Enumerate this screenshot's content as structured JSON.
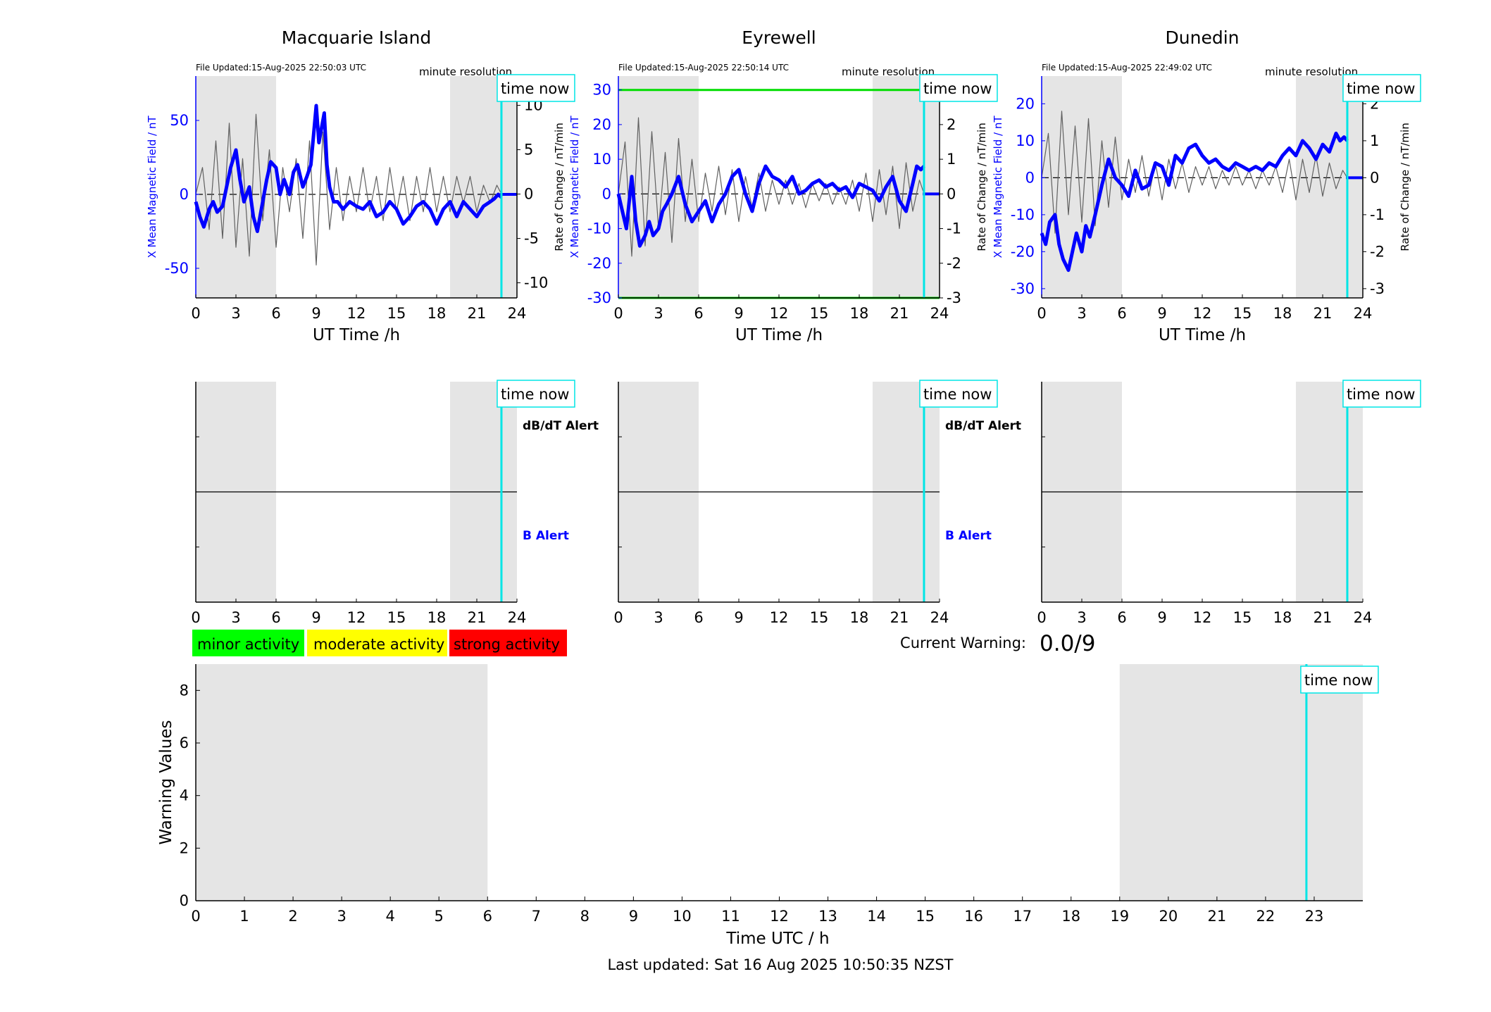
{
  "figure": {
    "last_updated": "Last updated: Sat 16 Aug 2025 10:50:35 NZST",
    "time_now_label": "time now",
    "minute_resolution_label": "minute resolution",
    "current_warning_label": "Current Warning:",
    "current_warning_value": "0.0/9",
    "legend": [
      {
        "label": "minor activity",
        "color": "#00ff00"
      },
      {
        "label": "moderate activity",
        "color": "#ffff00"
      },
      {
        "label": "strong activity",
        "color": "#ff0000"
      }
    ],
    "alert_labels": {
      "dbdt": "dB/dT Alert",
      "b": "B Alert"
    },
    "colors": {
      "series_x": "#0000ff",
      "rate": "#606060",
      "time_now": "#00e5e5",
      "shade": "#e5e5e5",
      "threshold": "#00dd00"
    }
  },
  "chart_data": [
    {
      "type": "line",
      "title": "Macquarie Island",
      "file_updated": "File Updated:15-Aug-2025 22:50:03 UTC",
      "xlabel": "UT Time /h",
      "ylabel_left": "X Mean Magnetic Field / nT",
      "ylabel_right": "Rate of Change / nT/min",
      "xlim": [
        0,
        24
      ],
      "xticks": [
        0,
        3,
        6,
        9,
        12,
        15,
        18,
        21,
        24
      ],
      "ylim_left": [
        -70,
        80
      ],
      "yticks_left": [
        -50,
        0,
        50
      ],
      "ylim_right": [
        -11.7,
        13.3
      ],
      "yticks_right": [
        -10,
        -5,
        0,
        5,
        10
      ],
      "shaded_ranges": [
        [
          0,
          6
        ],
        [
          19,
          24
        ]
      ],
      "time_now": 22.84,
      "threshold_lines": [],
      "series": [
        {
          "axis": "left",
          "x": [
            0,
            0.3,
            0.6,
            1,
            1.3,
            1.6,
            2,
            2.3,
            2.6,
            3,
            3.3,
            3.6,
            4,
            4.3,
            4.6,
            5,
            5.3,
            5.6,
            6,
            6.3,
            6.6,
            7,
            7.3,
            7.6,
            8,
            8.3,
            8.6,
            8.8,
            9,
            9.2,
            9.4,
            9.6,
            9.8,
            10,
            10.3,
            10.6,
            11,
            11.5,
            12,
            12.5,
            13,
            13.5,
            14,
            14.5,
            15,
            15.5,
            16,
            16.5,
            17,
            17.5,
            18,
            18.5,
            19,
            19.5,
            20,
            20.5,
            21,
            21.5,
            22,
            22.3,
            22.6,
            22.84
          ],
          "y": [
            -5,
            -15,
            -22,
            -10,
            -5,
            -12,
            -8,
            5,
            18,
            30,
            10,
            -5,
            5,
            -15,
            -25,
            -5,
            10,
            22,
            18,
            0,
            10,
            0,
            15,
            20,
            5,
            12,
            20,
            40,
            60,
            35,
            45,
            55,
            20,
            5,
            -5,
            -5,
            -10,
            -5,
            -8,
            -10,
            -5,
            -15,
            -12,
            -5,
            -10,
            -20,
            -15,
            -8,
            -5,
            -10,
            -20,
            -10,
            -5,
            -15,
            -5,
            -10,
            -15,
            -8,
            -5,
            -3,
            0,
            -2
          ]
        },
        {
          "axis": "right",
          "x": [
            0,
            0.5,
            1,
            1.5,
            2,
            2.5,
            3,
            3.5,
            4,
            4.5,
            5,
            5.5,
            6,
            6.5,
            7,
            7.5,
            8,
            8.5,
            9,
            9.5,
            10,
            10.5,
            11,
            11.5,
            12,
            12.5,
            13,
            13.5,
            14,
            14.5,
            15,
            15.5,
            16,
            16.5,
            17,
            17.5,
            18,
            18.5,
            19,
            19.5,
            20,
            20.5,
            21,
            21.5,
            22,
            22.5,
            22.84
          ],
          "y": [
            0,
            3,
            -4,
            6,
            -5,
            8,
            -6,
            4,
            -7,
            9,
            -3,
            5,
            -6,
            3,
            -2,
            4,
            -5,
            6,
            -8,
            7,
            -4,
            3,
            -3,
            2,
            -2,
            3,
            -2,
            2,
            -3,
            3,
            -2,
            2,
            -3,
            2,
            -2,
            3,
            -2,
            2,
            -2,
            2,
            -1,
            2,
            -2,
            1,
            -1,
            1,
            0
          ]
        }
      ]
    },
    {
      "type": "line",
      "title": "Eyrewell",
      "file_updated": "File Updated:15-Aug-2025 22:50:14 UTC",
      "xlabel": "UT Time /h",
      "ylabel_left": "X Mean Magnetic Field / nT",
      "ylabel_right": "Rate of Change / nT/min",
      "xlim": [
        0,
        24
      ],
      "xticks": [
        0,
        3,
        6,
        9,
        12,
        15,
        18,
        21,
        24
      ],
      "ylim_left": [
        -30,
        34
      ],
      "yticks_left": [
        -30,
        -20,
        -10,
        0,
        10,
        20,
        30
      ],
      "ylim_right": [
        -3,
        3.4
      ],
      "yticks_right": [
        -3,
        -2,
        -1,
        0,
        1,
        2,
        3
      ],
      "shaded_ranges": [
        [
          0,
          6
        ],
        [
          19,
          24
        ]
      ],
      "time_now": 22.84,
      "threshold_lines": [
        30,
        -30
      ],
      "series": [
        {
          "axis": "left",
          "x": [
            0,
            0.3,
            0.6,
            1,
            1.3,
            1.6,
            2,
            2.3,
            2.6,
            3,
            3.3,
            3.6,
            4,
            4.5,
            5,
            5.5,
            6,
            6.5,
            7,
            7.5,
            8,
            8.5,
            9,
            9.5,
            10,
            10.5,
            11,
            11.5,
            12,
            12.5,
            13,
            13.5,
            14,
            14.5,
            15,
            15.5,
            16,
            16.5,
            17,
            17.5,
            18,
            18.5,
            19,
            19.5,
            20,
            20.5,
            21,
            21.5,
            22,
            22.3,
            22.6,
            22.84
          ],
          "y": [
            0,
            -5,
            -10,
            5,
            -8,
            -15,
            -12,
            -8,
            -12,
            -10,
            -5,
            -3,
            0,
            5,
            -3,
            -8,
            -5,
            -2,
            -8,
            -3,
            0,
            5,
            7,
            0,
            -5,
            3,
            8,
            5,
            4,
            2,
            5,
            0,
            1,
            3,
            4,
            2,
            3,
            1,
            2,
            -1,
            3,
            2,
            1,
            -2,
            2,
            5,
            -2,
            -5,
            3,
            8,
            7,
            8
          ]
        },
        {
          "axis": "right",
          "x": [
            0,
            0.5,
            1,
            1.5,
            2,
            2.5,
            3,
            3.5,
            4,
            4.5,
            5,
            5.5,
            6,
            6.5,
            7,
            7.5,
            8,
            8.5,
            9,
            9.5,
            10,
            10.5,
            11,
            11.5,
            12,
            12.5,
            13,
            13.5,
            14,
            14.5,
            15,
            15.5,
            16,
            16.5,
            17,
            17.5,
            18,
            18.5,
            19,
            19.5,
            20,
            20.5,
            21,
            21.5,
            22,
            22.5,
            22.84
          ],
          "y": [
            0,
            1.5,
            -1.8,
            2.2,
            -1.5,
            1.8,
            -1,
            1.2,
            -1.4,
            1.6,
            -0.8,
            1,
            -0.8,
            0.6,
            -0.5,
            0.8,
            -0.6,
            0.7,
            -0.8,
            0.5,
            -0.4,
            0.6,
            -0.5,
            0.4,
            -0.3,
            0.4,
            -0.3,
            0.3,
            -0.4,
            0.3,
            -0.2,
            0.3,
            -0.3,
            0.2,
            -0.3,
            0.4,
            -0.5,
            0.6,
            -0.8,
            0.7,
            -0.6,
            0.8,
            -1,
            0.9,
            -0.5,
            0.4,
            0
          ]
        }
      ]
    },
    {
      "type": "line",
      "title": "Dunedin",
      "file_updated": "File Updated:15-Aug-2025 22:49:02 UTC",
      "xlabel": "UT Time /h",
      "ylabel_left": "X Mean Magnetic Field / nT",
      "ylabel_right": "Rate of Change / nT/min",
      "xlim": [
        0,
        24
      ],
      "xticks": [
        0,
        3,
        6,
        9,
        12,
        15,
        18,
        21,
        24
      ],
      "ylim_left": [
        -32.5,
        27.5
      ],
      "yticks_left": [
        -30,
        -20,
        -10,
        0,
        10,
        20
      ],
      "ylim_right": [
        -3.25,
        2.75
      ],
      "yticks_right": [
        -3,
        -2,
        -1,
        0,
        1,
        2
      ],
      "shaded_ranges": [
        [
          0,
          6
        ],
        [
          19,
          24
        ]
      ],
      "time_now": 22.84,
      "threshold_lines": [],
      "series": [
        {
          "axis": "left",
          "x": [
            0,
            0.3,
            0.6,
            1,
            1.3,
            1.6,
            2,
            2.3,
            2.6,
            3,
            3.3,
            3.6,
            4,
            4.5,
            5,
            5.5,
            6,
            6.5,
            7,
            7.5,
            8,
            8.5,
            9,
            9.5,
            10,
            10.5,
            11,
            11.5,
            12,
            12.5,
            13,
            13.5,
            14,
            14.5,
            15,
            15.5,
            16,
            16.5,
            17,
            17.5,
            18,
            18.5,
            19,
            19.5,
            20,
            20.5,
            21,
            21.5,
            22,
            22.3,
            22.6,
            22.84
          ],
          "y": [
            -15,
            -18,
            -12,
            -10,
            -18,
            -22,
            -25,
            -20,
            -15,
            -20,
            -13,
            -16,
            -10,
            -2,
            5,
            0,
            -2,
            -5,
            2,
            -3,
            -2,
            4,
            3,
            -2,
            6,
            4,
            8,
            9,
            6,
            4,
            5,
            3,
            2,
            4,
            3,
            2,
            3,
            2,
            4,
            3,
            6,
            8,
            6,
            10,
            8,
            5,
            9,
            7,
            12,
            10,
            11,
            10
          ]
        },
        {
          "axis": "right",
          "x": [
            0,
            0.5,
            1,
            1.5,
            2,
            2.5,
            3,
            3.5,
            4,
            4.5,
            5,
            5.5,
            6,
            6.5,
            7,
            7.5,
            8,
            8.5,
            9,
            9.5,
            10,
            10.5,
            11,
            11.5,
            12,
            12.5,
            13,
            13.5,
            14,
            14.5,
            15,
            15.5,
            16,
            16.5,
            17,
            17.5,
            18,
            18.5,
            19,
            19.5,
            20,
            20.5,
            21,
            21.5,
            22,
            22.5,
            22.84
          ],
          "y": [
            0,
            1.2,
            -1.5,
            1.8,
            -1,
            1.4,
            -1.2,
            1.6,
            -1.3,
            1,
            -0.8,
            1.1,
            -0.6,
            0.5,
            -0.4,
            0.6,
            -0.5,
            0.4,
            -0.6,
            0.5,
            -0.3,
            0.4,
            -0.4,
            0.3,
            -0.2,
            0.3,
            -0.3,
            0.2,
            -0.2,
            0.3,
            -0.2,
            0.2,
            -0.3,
            0.2,
            -0.2,
            0.3,
            -0.4,
            0.5,
            -0.6,
            0.5,
            -0.4,
            0.6,
            -0.5,
            0.4,
            -0.3,
            0.2,
            0
          ]
        }
      ]
    },
    {
      "type": "line",
      "xlim": [
        0,
        24
      ],
      "xticks": [
        0,
        3,
        6,
        9,
        12,
        15,
        18,
        21,
        24
      ],
      "shaded_ranges": [
        [
          0,
          6
        ],
        [
          19,
          24
        ]
      ],
      "time_now": 22.84,
      "show_alert_labels": true
    },
    {
      "type": "line",
      "xlim": [
        0,
        24
      ],
      "xticks": [
        0,
        3,
        6,
        9,
        12,
        15,
        18,
        21,
        24
      ],
      "shaded_ranges": [
        [
          0,
          6
        ],
        [
          19,
          24
        ]
      ],
      "time_now": 22.84,
      "show_alert_labels": true
    },
    {
      "type": "line",
      "xlim": [
        0,
        24
      ],
      "xticks": [
        0,
        3,
        6,
        9,
        12,
        15,
        18,
        21,
        24
      ],
      "shaded_ranges": [
        [
          0,
          6
        ],
        [
          19,
          24
        ]
      ],
      "time_now": 22.84,
      "show_alert_labels": false
    },
    {
      "type": "bar",
      "xlabel": "Time UTC / h",
      "ylabel": "Warning Values",
      "xlim": [
        0,
        24
      ],
      "xticks": [
        0,
        1,
        2,
        3,
        4,
        5,
        6,
        7,
        8,
        9,
        10,
        11,
        12,
        13,
        14,
        15,
        16,
        17,
        18,
        19,
        20,
        21,
        22,
        23
      ],
      "ylim": [
        0,
        9
      ],
      "yticks": [
        0,
        2,
        4,
        6,
        8
      ],
      "shaded_ranges": [
        [
          0,
          6
        ],
        [
          19,
          24
        ]
      ],
      "time_now": 22.84,
      "values": []
    }
  ]
}
